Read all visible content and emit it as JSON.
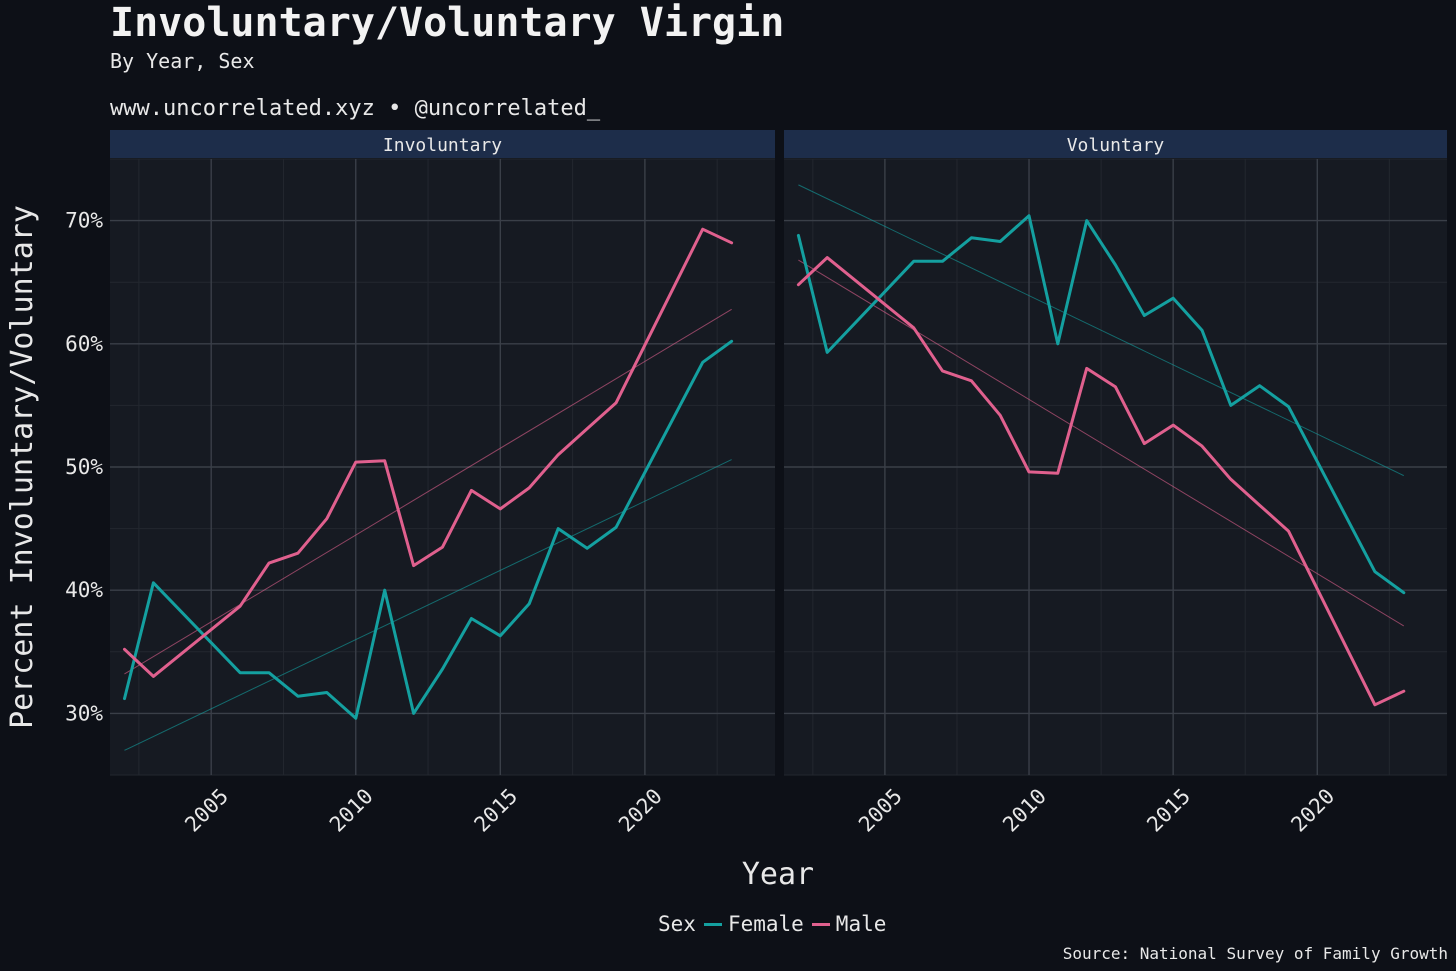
{
  "header": {
    "title": "Involuntary/Voluntary Virgin",
    "subtitle": "By Year, Sex",
    "site": "www.uncorrelated.xyz • @uncorrelated_"
  },
  "caption": "Source: National Survey of Family Growth",
  "legend": {
    "title": "Sex",
    "items": [
      {
        "label": "Female",
        "color": "#14a0a0"
      },
      {
        "label": "Male",
        "color": "#e0608e"
      }
    ]
  },
  "colors": {
    "background": "#0d1017",
    "panel": "#161a22",
    "strip": "#1d2d4a",
    "grid_major": "#3a3f48",
    "grid_minor": "#23272f",
    "female": "#14a0a0",
    "male": "#e0608e"
  },
  "chart_data": {
    "type": "line",
    "xlabel": "Year",
    "ylabel": "Percent Involuntary/Voluntary",
    "xlim": [
      2001.5,
      2024.5
    ],
    "ylim": [
      25,
      75
    ],
    "x_ticks": [
      2005,
      2010,
      2015,
      2020
    ],
    "x_tick_labels": [
      "2005",
      "2010",
      "2015",
      "2020"
    ],
    "y_ticks": [
      30,
      40,
      50,
      60,
      70
    ],
    "y_tick_labels": [
      "30%",
      "40%",
      "50%",
      "60%",
      "70%"
    ],
    "grid": true,
    "legend_position": "bottom",
    "facets": [
      {
        "label": "Involuntary",
        "series": [
          {
            "name": "Female",
            "x": [
              2002,
              2003,
              2006,
              2007,
              2008,
              2009,
              2010,
              2011,
              2012,
              2013,
              2014,
              2015,
              2016,
              2017,
              2018,
              2019,
              2022,
              2023
            ],
            "values": [
              31.2,
              40.6,
              33.3,
              33.3,
              31.4,
              31.7,
              29.6,
              40.0,
              30.0,
              33.6,
              37.7,
              36.3,
              38.9,
              45.0,
              43.4,
              45.1,
              58.5,
              60.2
            ]
          },
          {
            "name": "Male",
            "x": [
              2002,
              2003,
              2006,
              2007,
              2008,
              2009,
              2010,
              2011,
              2012,
              2013,
              2014,
              2015,
              2016,
              2017,
              2018,
              2019,
              2022,
              2023
            ],
            "values": [
              35.2,
              33.0,
              38.7,
              42.2,
              43.0,
              45.8,
              50.4,
              50.5,
              42.0,
              43.5,
              48.1,
              46.6,
              48.3,
              51.0,
              53.1,
              55.2,
              69.3,
              68.2
            ]
          }
        ],
        "trend_lines": [
          {
            "name": "Female",
            "x": [
              2002,
              2023
            ],
            "values": [
              27.0,
              50.6
            ]
          },
          {
            "name": "Male",
            "x": [
              2002,
              2023
            ],
            "values": [
              33.2,
              62.8
            ]
          }
        ]
      },
      {
        "label": "Voluntary",
        "series": [
          {
            "name": "Female",
            "x": [
              2002,
              2003,
              2006,
              2007,
              2008,
              2009,
              2010,
              2011,
              2012,
              2013,
              2014,
              2015,
              2016,
              2017,
              2018,
              2019,
              2022,
              2023
            ],
            "values": [
              68.8,
              59.3,
              66.7,
              66.7,
              68.6,
              68.3,
              70.4,
              60.0,
              70.0,
              66.4,
              62.3,
              63.7,
              61.1,
              55.0,
              56.6,
              54.9,
              41.5,
              39.8
            ]
          },
          {
            "name": "Male",
            "x": [
              2002,
              2003,
              2006,
              2007,
              2008,
              2009,
              2010,
              2011,
              2012,
              2013,
              2014,
              2015,
              2016,
              2017,
              2018,
              2019,
              2022,
              2023
            ],
            "values": [
              64.8,
              67.0,
              61.3,
              57.8,
              57.0,
              54.2,
              49.6,
              49.5,
              58.0,
              56.5,
              51.9,
              53.4,
              51.7,
              49.0,
              46.9,
              44.8,
              30.7,
              31.8
            ]
          }
        ],
        "trend_lines": [
          {
            "name": "Female",
            "x": [
              2002,
              2023
            ],
            "values": [
              72.9,
              49.3
            ]
          },
          {
            "name": "Male",
            "x": [
              2002,
              2023
            ],
            "values": [
              66.8,
              37.1
            ]
          }
        ]
      }
    ]
  }
}
